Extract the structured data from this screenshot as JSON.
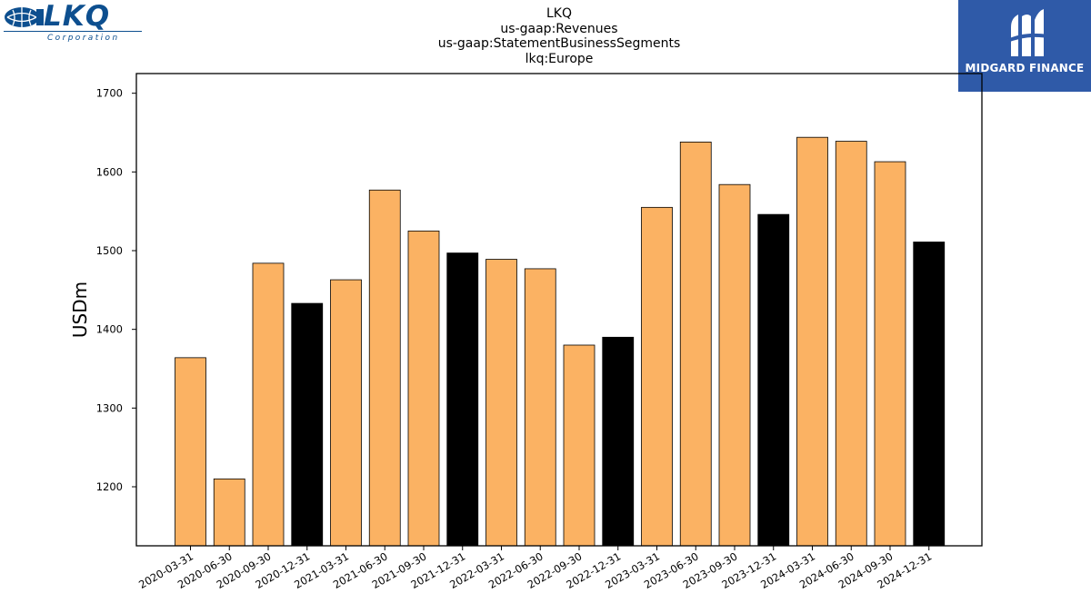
{
  "brand": {
    "lkq_logo_text": "LKQ",
    "lkq_corp_text": "Corporation",
    "midgard_logo_text": "MIDGARD FINANCE"
  },
  "title_lines": [
    "LKQ",
    "us-gaap:Revenues",
    "us-gaap:StatementBusinessSegments",
    "lkq:Europe"
  ],
  "colors": {
    "quarter_bar": "#fbb263",
    "year_end_bar": "#000000",
    "edge": "#000000"
  },
  "chart_data": {
    "type": "bar",
    "title": "LKQ\nus-gaap:Revenues\nus-gaap:StatementBusinessSegments\nlkq:Europe",
    "xlabel": "",
    "ylabel": "USDm",
    "ylim": [
      1125,
      1725
    ],
    "yticks": [
      1200,
      1300,
      1400,
      1500,
      1600,
      1700
    ],
    "grid": false,
    "categories": [
      "2020-03-31",
      "2020-06-30",
      "2020-09-30",
      "2020-12-31",
      "2021-03-31",
      "2021-06-30",
      "2021-09-30",
      "2021-12-31",
      "2022-03-31",
      "2022-06-30",
      "2022-09-30",
      "2022-12-31",
      "2023-03-31",
      "2023-06-30",
      "2023-09-30",
      "2023-12-31",
      "2024-03-31",
      "2024-06-30",
      "2024-09-30",
      "2024-12-31"
    ],
    "values": [
      1364,
      1210,
      1484,
      1433,
      1463,
      1577,
      1525,
      1497,
      1489,
      1477,
      1380,
      1390,
      1555,
      1638,
      1584,
      1546,
      1644,
      1639,
      1613,
      1511
    ],
    "year_end": [
      false,
      false,
      false,
      true,
      false,
      false,
      false,
      true,
      false,
      false,
      false,
      true,
      false,
      false,
      false,
      true,
      false,
      false,
      false,
      true
    ]
  }
}
